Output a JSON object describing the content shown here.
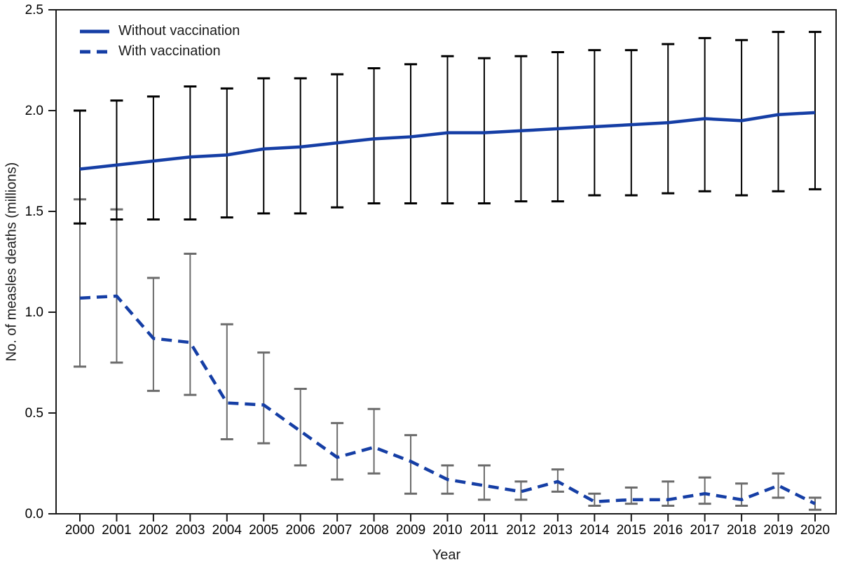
{
  "colors": {
    "line": "#153ea5",
    "errorbar_without": "#000000",
    "errorbar_with": "#6b6b6b",
    "axis": "#1a1a1a",
    "text": "#000000"
  },
  "chart_data": {
    "type": "line",
    "title": "",
    "xlabel": "Year",
    "ylabel": "No. of measles deaths (millions)",
    "x": [
      2000,
      2001,
      2002,
      2003,
      2004,
      2005,
      2006,
      2007,
      2008,
      2009,
      2010,
      2011,
      2012,
      2013,
      2014,
      2015,
      2016,
      2017,
      2018,
      2019,
      2020
    ],
    "xtick_labels": [
      "2000",
      "2001",
      "2002",
      "2003",
      "2004",
      "2005",
      "2006",
      "2007",
      "2008",
      "2009",
      "2010",
      "2011",
      "2012",
      "2013",
      "2014",
      "2015",
      "2016",
      "2017",
      "2018",
      "2019",
      "2020"
    ],
    "ylim": [
      0,
      2.5
    ],
    "yticks": [
      0.0,
      0.5,
      1.0,
      1.5,
      2.0,
      2.5
    ],
    "ytick_labels": [
      "0.0",
      "0.5",
      "1.0",
      "1.5",
      "2.0",
      "2.5"
    ],
    "grid": false,
    "legend_position": "top-left",
    "series": [
      {
        "name": "Without vaccination",
        "line_style": "solid",
        "color": "#153ea5",
        "errorbar_color": "#000000",
        "values": [
          1.71,
          1.73,
          1.75,
          1.77,
          1.78,
          1.81,
          1.82,
          1.84,
          1.86,
          1.87,
          1.89,
          1.89,
          1.9,
          1.91,
          1.92,
          1.93,
          1.94,
          1.96,
          1.95,
          1.98,
          1.99
        ],
        "ci_low": [
          1.44,
          1.46,
          1.46,
          1.46,
          1.47,
          1.49,
          1.49,
          1.52,
          1.54,
          1.54,
          1.54,
          1.54,
          1.55,
          1.55,
          1.58,
          1.58,
          1.59,
          1.6,
          1.58,
          1.6,
          1.61
        ],
        "ci_high": [
          2.0,
          2.05,
          2.07,
          2.12,
          2.11,
          2.16,
          2.16,
          2.18,
          2.21,
          2.23,
          2.27,
          2.26,
          2.27,
          2.29,
          2.3,
          2.3,
          2.33,
          2.36,
          2.35,
          2.39,
          2.39
        ]
      },
      {
        "name": "With vaccination",
        "line_style": "dashed",
        "color": "#153ea5",
        "errorbar_color": "#6b6b6b",
        "values": [
          1.07,
          1.08,
          0.87,
          0.85,
          0.55,
          0.54,
          0.41,
          0.28,
          0.33,
          0.26,
          0.17,
          0.14,
          0.11,
          0.16,
          0.06,
          0.07,
          0.07,
          0.1,
          0.07,
          0.14,
          0.05
        ],
        "ci_low": [
          0.73,
          0.75,
          0.61,
          0.59,
          0.37,
          0.35,
          0.24,
          0.17,
          0.2,
          0.1,
          0.1,
          0.07,
          0.07,
          0.11,
          0.04,
          0.05,
          0.04,
          0.05,
          0.04,
          0.08,
          0.02
        ],
        "ci_high": [
          1.56,
          1.51,
          1.17,
          1.29,
          0.94,
          0.8,
          0.62,
          0.45,
          0.52,
          0.39,
          0.24,
          0.24,
          0.16,
          0.22,
          0.1,
          0.13,
          0.16,
          0.18,
          0.15,
          0.2,
          0.08
        ]
      }
    ]
  }
}
